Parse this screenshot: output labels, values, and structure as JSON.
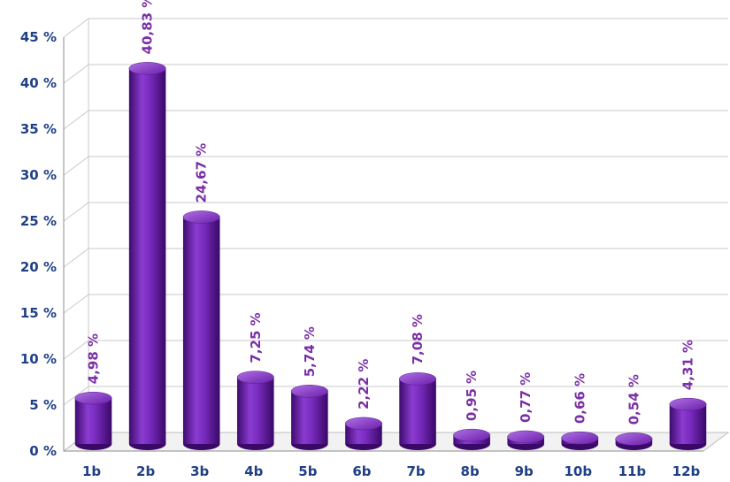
{
  "chart_data": {
    "type": "bar",
    "title": "",
    "xlabel": "",
    "ylabel": "",
    "categories": [
      "1b",
      "2b",
      "3b",
      "4b",
      "5b",
      "6b",
      "7b",
      "8b",
      "9b",
      "10b",
      "11b",
      "12b"
    ],
    "values": [
      4.98,
      40.83,
      24.67,
      7.25,
      5.74,
      2.22,
      7.08,
      0.95,
      0.77,
      0.66,
      0.54,
      4.31
    ],
    "data_labels": [
      "4,98 %",
      "40,83 %",
      "24,67 %",
      "7,25 %",
      "5,74 %",
      "2,22 %",
      "7,08 %",
      "0,95 %",
      "0,77 %",
      "0,66 %",
      "0,54 %",
      "4,31 %"
    ],
    "y_ticks": [
      0,
      5,
      10,
      15,
      20,
      25,
      30,
      35,
      40,
      45
    ],
    "y_tick_labels": [
      "0 %",
      "5 %",
      "10 %",
      "15 %",
      "20 %",
      "25 %",
      "30 %",
      "35 %",
      "40 %",
      "45 %"
    ],
    "ylim": [
      0,
      45
    ],
    "grid": true,
    "legend": "none",
    "style": "3d-cylinder",
    "colors": {
      "bar": "#6a1fa8",
      "bar_dark": "#3e0a6e",
      "bar_light": "#a860e0",
      "data_label": "#7a2fa6",
      "tick_label": "#1f3f86",
      "grid": "#c9c9c9"
    }
  }
}
